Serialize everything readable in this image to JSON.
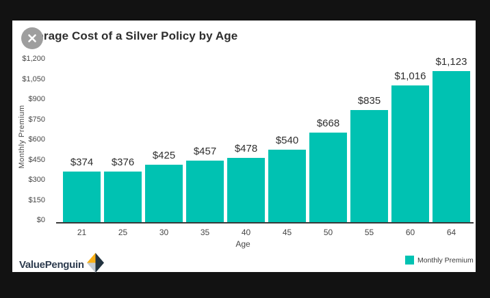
{
  "page": {
    "background": "#121212",
    "card_background": "#ffffff"
  },
  "close_button": {
    "icon": "close-x",
    "color": "#9e9e9e"
  },
  "chart_data": {
    "type": "bar",
    "title": "Average Cost of a Silver Policy by Age",
    "xlabel": "Age",
    "ylabel": "Monthly Premium",
    "categories": [
      "21",
      "25",
      "30",
      "35",
      "40",
      "45",
      "50",
      "55",
      "60",
      "64"
    ],
    "values": [
      374,
      376,
      425,
      457,
      478,
      540,
      668,
      835,
      1016,
      1123
    ],
    "value_labels": [
      "$374",
      "$376",
      "$425",
      "$457",
      "$478",
      "$540",
      "$668",
      "$835",
      "$1,016",
      "$1,123"
    ],
    "ylim": [
      0,
      1200
    ],
    "ytick_step": 150,
    "ytick_labels": [
      "$0",
      "$150",
      "$300",
      "$450",
      "$600",
      "$750",
      "$900",
      "$1,050",
      "$1,200"
    ],
    "grid": false,
    "bar_color": "#00c2b2",
    "axis_color": "#383838",
    "legend": {
      "position": "bottom-right",
      "items": [
        {
          "label": "Monthly Premium",
          "color": "#00c2b2"
        }
      ]
    }
  },
  "branding": {
    "wordmark": "ValuePenguin",
    "logo_colors": {
      "gold": "#f9b016",
      "navy": "#22333f",
      "gray": "#c5ccd3"
    }
  }
}
